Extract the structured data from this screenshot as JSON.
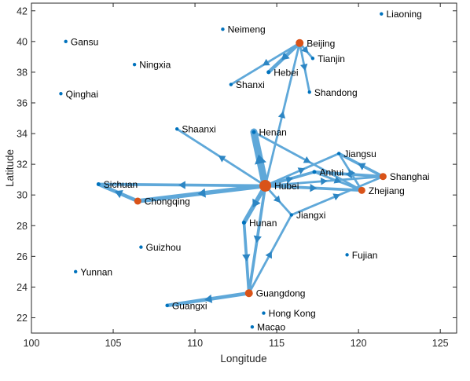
{
  "chart_data": {
    "type": "scatter",
    "xlabel": "Longitude",
    "ylabel": "Latitude",
    "xlim": [
      100,
      126
    ],
    "ylim": [
      21,
      42.5
    ],
    "xticks": [
      100,
      105,
      110,
      115,
      120,
      125
    ],
    "yticks": [
      22,
      24,
      26,
      28,
      30,
      32,
      34,
      36,
      38,
      40,
      42
    ],
    "grid": false,
    "colors": {
      "edge": "#5fa8d9",
      "node": "#0072bd",
      "hub": "#d95319",
      "axis": "#262626"
    },
    "nodes": [
      {
        "name": "Liaoning",
        "lon": 121.4,
        "lat": 41.8,
        "size": 2.2
      },
      {
        "name": "Neimeng",
        "lon": 111.7,
        "lat": 40.8,
        "size": 2.2
      },
      {
        "name": "Beijing",
        "lon": 116.4,
        "lat": 39.9,
        "size": 5,
        "hub": true
      },
      {
        "name": "Gansu",
        "lon": 102.1,
        "lat": 40.0,
        "size": 2.2
      },
      {
        "name": "Tianjin",
        "lon": 117.2,
        "lat": 38.9,
        "size": 2.2
      },
      {
        "name": "Ningxia",
        "lon": 106.3,
        "lat": 38.5,
        "size": 2.2
      },
      {
        "name": "Hebei",
        "lon": 114.5,
        "lat": 38.0,
        "size": 2.5
      },
      {
        "name": "Shanxi",
        "lon": 112.2,
        "lat": 37.2,
        "size": 2.2
      },
      {
        "name": "Shandong",
        "lon": 117.0,
        "lat": 36.7,
        "size": 2.2
      },
      {
        "name": "Qinghai",
        "lon": 101.8,
        "lat": 36.6,
        "size": 2.2
      },
      {
        "name": "Shaanxi",
        "lon": 108.9,
        "lat": 34.3,
        "size": 2.2
      },
      {
        "name": "Henan",
        "lon": 113.6,
        "lat": 34.1,
        "size": 2.5
      },
      {
        "name": "Jiangsu",
        "lon": 118.8,
        "lat": 32.7,
        "size": 2.2,
        "labelSide": "right"
      },
      {
        "name": "Anhui",
        "lon": 117.3,
        "lat": 31.5,
        "size": 2.5
      },
      {
        "name": "Shanghai",
        "lon": 121.5,
        "lat": 31.2,
        "size": 4.5,
        "hub": true
      },
      {
        "name": "Hubei",
        "lon": 114.3,
        "lat": 30.6,
        "size": 7.5,
        "hub": true
      },
      {
        "name": "Sichuan",
        "lon": 104.1,
        "lat": 30.7,
        "size": 2.5
      },
      {
        "name": "Zhejiang",
        "lon": 120.2,
        "lat": 30.3,
        "size": 4.5,
        "hub": true
      },
      {
        "name": "Chongqing",
        "lon": 106.5,
        "lat": 29.6,
        "size": 4.5,
        "hub": true
      },
      {
        "name": "Jiangxi",
        "lon": 115.9,
        "lat": 28.7,
        "size": 2.2
      },
      {
        "name": "Hunan",
        "lon": 113.0,
        "lat": 28.2,
        "size": 2.5
      },
      {
        "name": "Guizhou",
        "lon": 106.7,
        "lat": 26.6,
        "size": 2.2
      },
      {
        "name": "Fujian",
        "lon": 119.3,
        "lat": 26.1,
        "size": 2.2
      },
      {
        "name": "Yunnan",
        "lon": 102.7,
        "lat": 25.0,
        "size": 2.2
      },
      {
        "name": "Guangdong",
        "lon": 113.3,
        "lat": 23.6,
        "size": 5,
        "hub": true
      },
      {
        "name": "Guangxi",
        "lon": 108.3,
        "lat": 22.8,
        "size": 2.2
      },
      {
        "name": "Hong Kong",
        "lon": 114.2,
        "lat": 22.3,
        "size": 2.2
      },
      {
        "name": "Macao",
        "lon": 113.5,
        "lat": 21.4,
        "size": 2.2
      }
    ],
    "edges": [
      {
        "from": "Hubei",
        "to": "Henan",
        "weight": 9
      },
      {
        "from": "Hubei",
        "to": "Chongqing",
        "weight": 5
      },
      {
        "from": "Hubei",
        "to": "Sichuan",
        "weight": 3
      },
      {
        "from": "Hubei",
        "to": "Shaanxi",
        "weight": 2
      },
      {
        "from": "Hubei",
        "to": "Hunan",
        "weight": 5
      },
      {
        "from": "Hubei",
        "to": "Guangdong",
        "weight": 3
      },
      {
        "from": "Hubei",
        "to": "Anhui",
        "weight": 3
      },
      {
        "from": "Hubei",
        "to": "Jiangsu",
        "weight": 2
      },
      {
        "from": "Hubei",
        "to": "Zhejiang",
        "weight": 3
      },
      {
        "from": "Hubei",
        "to": "Shanghai",
        "weight": 2
      },
      {
        "from": "Hubei",
        "to": "Beijing",
        "weight": 2
      },
      {
        "from": "Hubei",
        "to": "Jiangxi",
        "weight": 2
      },
      {
        "from": "Henan",
        "to": "Zhejiang",
        "weight": 2
      },
      {
        "from": "Beijing",
        "to": "Hebei",
        "weight": 4
      },
      {
        "from": "Beijing",
        "to": "Shanxi",
        "weight": 2
      },
      {
        "from": "Beijing",
        "to": "Shandong",
        "weight": 2
      },
      {
        "from": "Beijing",
        "to": "Tianjin",
        "weight": 2
      },
      {
        "from": "Chongqing",
        "to": "Sichuan",
        "weight": 4
      },
      {
        "from": "Hunan",
        "to": "Guangdong",
        "weight": 3
      },
      {
        "from": "Guangdong",
        "to": "Guangxi",
        "weight": 4
      },
      {
        "from": "Guangdong",
        "to": "Jiangxi",
        "weight": 2
      },
      {
        "from": "Jiangxi",
        "to": "Shanghai",
        "weight": 2
      },
      {
        "from": "Shanghai",
        "to": "Anhui",
        "weight": 3
      },
      {
        "from": "Shanghai",
        "to": "Jiangsu",
        "weight": 3
      },
      {
        "from": "Zhejiang",
        "to": "Jiangsu",
        "weight": 2
      },
      {
        "from": "Anhui",
        "to": "Zhejiang",
        "weight": 2
      }
    ]
  }
}
